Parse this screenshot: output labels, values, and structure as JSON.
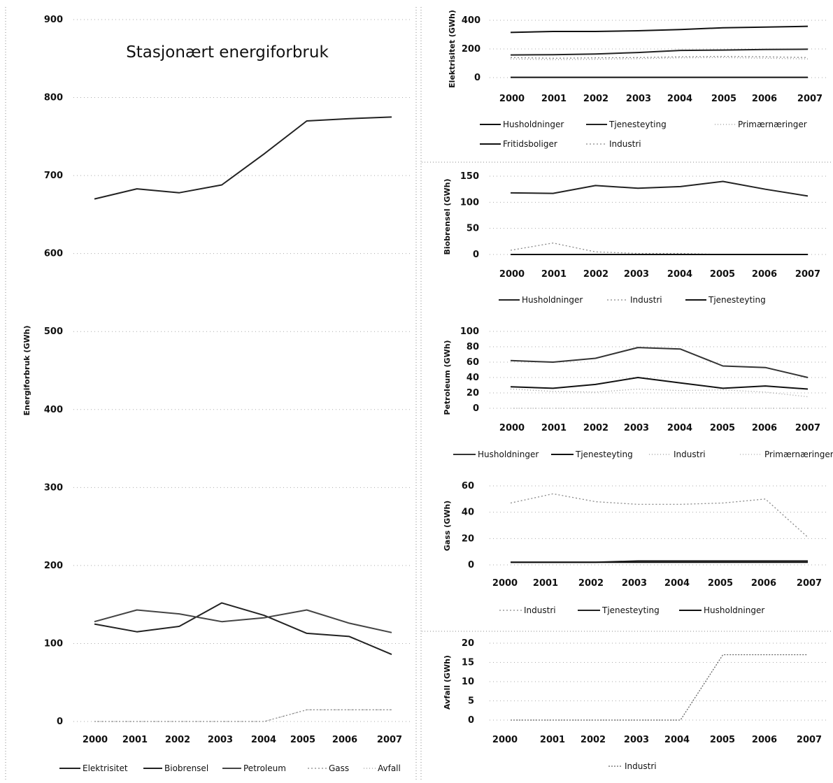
{
  "chart_data": [
    {
      "type": "line",
      "title": "Stasjonært energiforbruk",
      "ylabel": "Energiforbruk (GWh)",
      "xlabel": "",
      "ylim": [
        0,
        900
      ],
      "yticks": [
        "0",
        "100",
        "200",
        "300",
        "400",
        "500",
        "600",
        "700",
        "800",
        "900"
      ],
      "categories": [
        "2000",
        "2001",
        "2002",
        "2003",
        "2004",
        "2005",
        "2006",
        "2007"
      ],
      "series": [
        {
          "name": "Elektrisitet",
          "values": [
            670,
            683,
            678,
            688,
            728,
            770,
            773,
            775
          ],
          "color": "#222",
          "dash": ""
        },
        {
          "name": "Biobrensel",
          "values": [
            125,
            115,
            122,
            152,
            136,
            113,
            109,
            86
          ],
          "color": "#222",
          "dash": ""
        },
        {
          "name": "Petroleum",
          "values": [
            128,
            143,
            138,
            128,
            133,
            143,
            126,
            114
          ],
          "color": "#444",
          "dash": ""
        },
        {
          "name": "Gass",
          "values": [
            0,
            0,
            0,
            0,
            0,
            15,
            15,
            15
          ],
          "color": "#888",
          "dash": "2,3"
        },
        {
          "name": "Avfall",
          "values": [
            0,
            0,
            0,
            0,
            0,
            15,
            15,
            15
          ],
          "color": "#999",
          "dash": "1,3"
        }
      ],
      "legend_position": "bottom"
    },
    {
      "type": "line",
      "ylabel": "Elektrisitet (GWh)",
      "ylim": [
        0,
        400
      ],
      "yticks": [
        "0",
        "200",
        "400"
      ],
      "categories": [
        "2000",
        "2001",
        "2002",
        "2003",
        "2004",
        "2005",
        "2006",
        "2007"
      ],
      "series": [
        {
          "name": "Husholdninger",
          "values": [
            315,
            322,
            322,
            327,
            335,
            348,
            352,
            358
          ],
          "color": "#111",
          "dash": ""
        },
        {
          "name": "Tjenesteyting",
          "values": [
            158,
            160,
            165,
            175,
            190,
            192,
            196,
            198
          ],
          "color": "#222",
          "dash": ""
        },
        {
          "name": "Primærnæringer",
          "values": [
            130,
            125,
            128,
            132,
            138,
            140,
            135,
            130
          ],
          "color": "#999",
          "dash": "1,3"
        },
        {
          "name": "Fritidsboliger",
          "values": [
            2,
            2,
            2,
            2,
            2,
            2,
            2,
            2
          ],
          "color": "#111",
          "dash": ""
        },
        {
          "name": "Industri",
          "values": [
            140,
            135,
            138,
            140,
            145,
            148,
            145,
            140
          ],
          "color": "#888",
          "dash": "2,3"
        }
      ],
      "legend_position": "bottom"
    },
    {
      "type": "line",
      "ylabel": "Biobrensel (GWh)",
      "ylim": [
        0,
        150
      ],
      "yticks": [
        "0",
        "50",
        "100",
        "150"
      ],
      "categories": [
        "2000",
        "2001",
        "2002",
        "2003",
        "2004",
        "2005",
        "2006",
        "2007"
      ],
      "series": [
        {
          "name": "Husholdninger",
          "values": [
            118,
            117,
            132,
            127,
            130,
            140,
            125,
            112
          ],
          "color": "#222",
          "dash": ""
        },
        {
          "name": "Industri",
          "values": [
            8,
            22,
            5,
            2,
            2,
            0,
            0,
            0
          ],
          "color": "#888",
          "dash": "2,3"
        },
        {
          "name": "Tjenesteyting",
          "values": [
            0,
            0,
            0,
            0,
            0,
            0,
            0,
            0
          ],
          "color": "#111",
          "dash": ""
        }
      ],
      "legend_position": "bottom"
    },
    {
      "type": "line",
      "ylabel": "Petroleum (GWh)",
      "ylim": [
        0,
        100
      ],
      "yticks": [
        "0",
        "20",
        "40",
        "60",
        "80",
        "100"
      ],
      "categories": [
        "2000",
        "2001",
        "2002",
        "2003",
        "2004",
        "2005",
        "2006",
        "2007"
      ],
      "series": [
        {
          "name": "Husholdninger",
          "values": [
            62,
            60,
            65,
            79,
            77,
            55,
            53,
            40
          ],
          "color": "#333",
          "dash": ""
        },
        {
          "name": "Tjenesteyting",
          "values": [
            28,
            26,
            31,
            40,
            33,
            26,
            29,
            25
          ],
          "color": "#111",
          "dash": ""
        },
        {
          "name": "Industri",
          "values": [
            25,
            22,
            21,
            25,
            23,
            24,
            21,
            15
          ],
          "color": "#999",
          "dash": "1,3"
        },
        {
          "name": "Primærnæringer",
          "values": [
            0,
            0,
            0,
            0,
            0,
            0,
            0,
            0
          ],
          "color": "#aaa",
          "dash": "1,3"
        }
      ],
      "legend_position": "bottom"
    },
    {
      "type": "line",
      "ylabel": "Gass (GWh)",
      "ylim": [
        0,
        60
      ],
      "yticks": [
        "0",
        "20",
        "40",
        "60"
      ],
      "categories": [
        "2000",
        "2001",
        "2002",
        "2003",
        "2004",
        "2005",
        "2006",
        "2007"
      ],
      "series": [
        {
          "name": "Industri",
          "values": [
            47,
            54,
            48,
            46,
            46,
            47,
            50,
            21
          ],
          "color": "#888",
          "dash": "2,3"
        },
        {
          "name": "Tjenesteyting",
          "values": [
            2,
            2,
            2,
            3,
            3,
            3,
            3,
            3
          ],
          "color": "#222",
          "dash": ""
        },
        {
          "name": "Husholdninger",
          "values": [
            2,
            2,
            2,
            2,
            2,
            2,
            2,
            2
          ],
          "color": "#111",
          "dash": ""
        }
      ],
      "legend_position": "bottom"
    },
    {
      "type": "line",
      "ylabel": "Avfall (GWh)",
      "ylim": [
        0,
        20
      ],
      "yticks": [
        "0",
        "5",
        "10",
        "15",
        "20"
      ],
      "categories": [
        "2000",
        "2001",
        "2002",
        "2003",
        "2004",
        "2005",
        "2006",
        "2007"
      ],
      "series": [
        {
          "name": "Industri",
          "values": [
            0,
            0,
            0,
            0,
            0,
            17,
            17,
            17
          ],
          "color": "#666",
          "dash": "2,2"
        }
      ],
      "legend_position": "bottom"
    }
  ]
}
